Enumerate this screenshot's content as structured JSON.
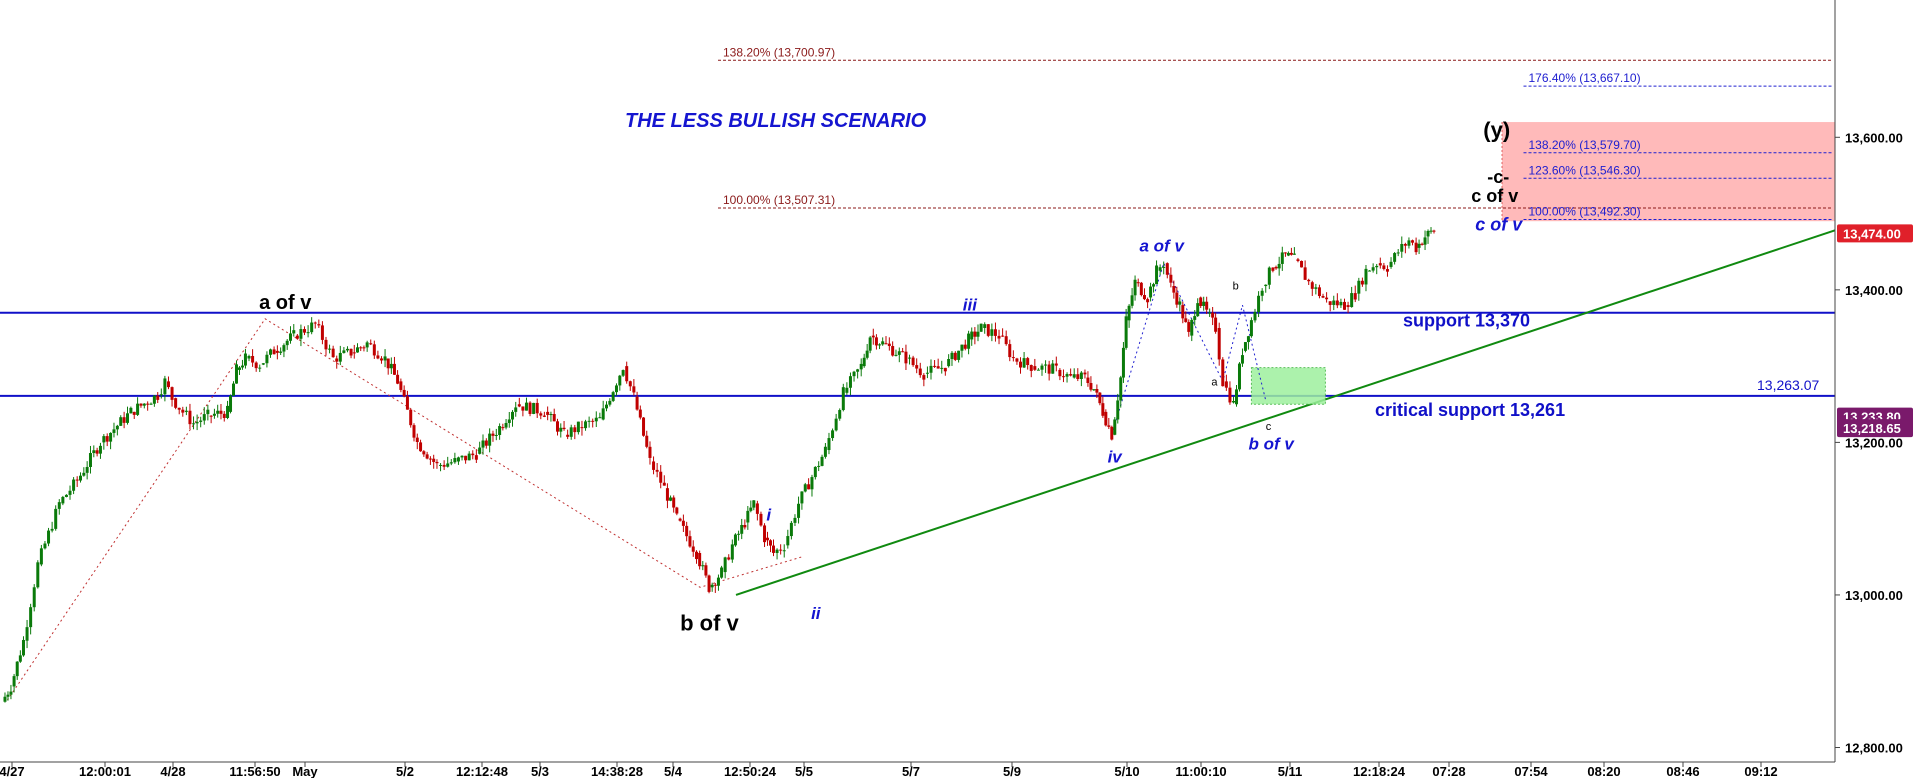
{
  "chart_data": {
    "type": "candlestick",
    "title": "THE LESS BULLISH SCENARIO",
    "ylim": [
      12760,
      13780
    ],
    "y_ticks": [
      12800,
      13000,
      13200,
      13400,
      13600
    ],
    "y_tick_labels": [
      "12,800.00",
      "13,000.00",
      "13,200.00",
      "13,400.00",
      "13,600.00"
    ],
    "x_tick_labels": [
      "4/27",
      "12:00:01",
      "4/28",
      "11:56:50",
      "May",
      "5/2",
      "12:12:48",
      "5/3",
      "14:38:28",
      "5/4",
      "12:50:24",
      "5/5",
      "5/7",
      "5/9",
      "5/10",
      "11:00:10",
      "5/11",
      "12:18:24",
      "07:28",
      "07:54",
      "08:20",
      "08:46",
      "09:12"
    ],
    "price_path": [
      [
        0,
        12860
      ],
      [
        5,
        12880
      ],
      [
        12,
        12940
      ],
      [
        20,
        13040
      ],
      [
        32,
        13120
      ],
      [
        42,
        13150
      ],
      [
        55,
        13200
      ],
      [
        72,
        13240
      ],
      [
        87,
        13262
      ],
      [
        91,
        13280
      ],
      [
        95,
        13258
      ],
      [
        101,
        13240
      ],
      [
        107,
        13225
      ],
      [
        115,
        13235
      ],
      [
        126,
        13240
      ],
      [
        131,
        13295
      ],
      [
        136,
        13310
      ],
      [
        144,
        13302
      ],
      [
        152,
        13320
      ],
      [
        163,
        13340
      ],
      [
        175,
        13355
      ],
      [
        185,
        13310
      ],
      [
        195,
        13318
      ],
      [
        204,
        13330
      ],
      [
        214,
        13310
      ],
      [
        221,
        13280
      ],
      [
        232,
        13200
      ],
      [
        243,
        13170
      ],
      [
        253,
        13175
      ],
      [
        265,
        13185
      ],
      [
        278,
        13220
      ],
      [
        287,
        13250
      ],
      [
        303,
        13240
      ],
      [
        314,
        13210
      ],
      [
        322,
        13220
      ],
      [
        334,
        13230
      ],
      [
        347,
        13300
      ],
      [
        353,
        13260
      ],
      [
        362,
        13175
      ],
      [
        370,
        13140
      ],
      [
        377,
        13100
      ],
      [
        388,
        13055
      ],
      [
        395,
        13010
      ],
      [
        402,
        13030
      ],
      [
        408,
        13065
      ],
      [
        415,
        13095
      ],
      [
        420,
        13120
      ],
      [
        426,
        13075
      ],
      [
        431,
        13055
      ],
      [
        437,
        13065
      ],
      [
        445,
        13120
      ],
      [
        460,
        13190
      ],
      [
        470,
        13265
      ],
      [
        480,
        13300
      ],
      [
        485,
        13340
      ],
      [
        492,
        13330
      ],
      [
        505,
        13310
      ],
      [
        515,
        13290
      ],
      [
        527,
        13300
      ],
      [
        540,
        13335
      ],
      [
        547,
        13350
      ],
      [
        557,
        13340
      ],
      [
        565,
        13310
      ],
      [
        575,
        13300
      ],
      [
        589,
        13295
      ],
      [
        597,
        13285
      ],
      [
        605,
        13285
      ],
      [
        610,
        13270
      ],
      [
        615,
        13240
      ],
      [
        620,
        13210
      ],
      [
        625,
        13285
      ],
      [
        628,
        13360
      ],
      [
        633,
        13410
      ],
      [
        640,
        13390
      ],
      [
        645,
        13425
      ],
      [
        649,
        13435
      ],
      [
        653,
        13405
      ],
      [
        658,
        13380
      ],
      [
        663,
        13340
      ],
      [
        668,
        13390
      ],
      [
        673,
        13370
      ],
      [
        678,
        13350
      ],
      [
        682,
        13280
      ],
      [
        688,
        13250
      ],
      [
        693,
        13320
      ],
      [
        698,
        13360
      ],
      [
        704,
        13405
      ],
      [
        710,
        13430
      ],
      [
        717,
        13445
      ],
      [
        722,
        13440
      ],
      [
        730,
        13410
      ],
      [
        740,
        13385
      ],
      [
        750,
        13380
      ],
      [
        756,
        13395
      ],
      [
        762,
        13425
      ],
      [
        768,
        13435
      ],
      [
        774,
        13430
      ],
      [
        780,
        13450
      ],
      [
        786,
        13465
      ],
      [
        790,
        13455
      ],
      [
        795,
        13470
      ],
      [
        800,
        13478
      ]
    ],
    "annotations": [
      {
        "label": "a of v",
        "x": 147,
        "y": 13362
      },
      {
        "label": "b of v",
        "x": 390,
        "y": 12982
      },
      {
        "label": "i",
        "x": 427,
        "y": 13090
      },
      {
        "label": "ii",
        "x": 452,
        "y": 13005
      },
      {
        "label": "iii",
        "x": 539,
        "y": 13365
      },
      {
        "label": "iv",
        "x": 621,
        "y": 13200
      },
      {
        "label": "a of v",
        "x": 650,
        "y": 13445
      },
      {
        "label": "a",
        "x": 679,
        "y": 13285
      },
      {
        "label": "b",
        "x": 692,
        "y": 13390
      },
      {
        "label": "c",
        "x": 706,
        "y": 13240
      },
      {
        "label": "b of v",
        "x": 712,
        "y": 13225
      },
      {
        "label": "(y)",
        "x": 832,
        "y": 13600
      },
      {
        "label": "-c-",
        "x": 832,
        "y": 13540
      },
      {
        "label": "c of v",
        "x": 832,
        "y": 13515
      },
      {
        "label": "c of v",
        "x": 832,
        "y": 13478
      }
    ],
    "fib_levels": [
      {
        "label": "138.20% (13,700.97)",
        "value": 13700.97
      },
      {
        "label": "100.00% (13,507.31)",
        "value": 13507.31
      },
      {
        "label": "176.40% (13,667.10)",
        "value": 13667.1
      },
      {
        "label": "138.20% (13,579.70)",
        "value": 13579.7
      },
      {
        "label": "123.60% (13,546.30)",
        "value": 13546.3
      },
      {
        "label": "100.00% (13,492.30)",
        "value": 13492.3
      }
    ],
    "horizontal_lines": [
      {
        "label": "support 13,370",
        "value": 13370
      },
      {
        "label": "critical support 13,261",
        "value": 13261
      }
    ],
    "horizontal_line_value_label": "13,263.07",
    "trendline": {
      "from": [
        400,
        13000
      ],
      "to": [
        1000,
        13478
      ]
    },
    "target_zone": {
      "from": 13490,
      "to": 13620
    },
    "price_tags": [
      {
        "label": "13,474.00",
        "value": 13474,
        "color": "#e0202a"
      },
      {
        "label": "13,233.80",
        "value": 13233.8,
        "color": "#7a1a6b"
      },
      {
        "label": "13,218.65",
        "value": 13218.65,
        "color": "#7a1a6b"
      }
    ],
    "colors": {
      "up": "#0a7a0a",
      "down": "#c00000",
      "support": "#1010c8",
      "trend": "#108a10",
      "fib_red": "#8b1a1a",
      "fib_blue": "#2020d0",
      "zone": "#ffb3b3",
      "title": "#1515d0"
    }
  }
}
